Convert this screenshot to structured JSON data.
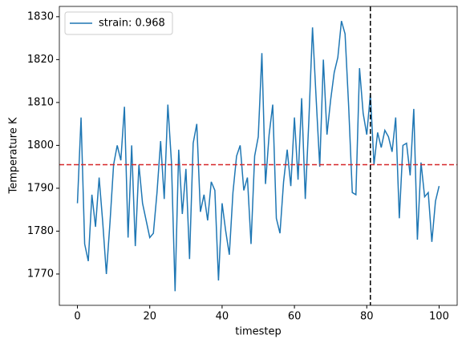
{
  "chart_data": {
    "type": "line",
    "x_label": "timestep",
    "y_label": "Temperature K",
    "x": [
      0,
      1,
      2,
      3,
      4,
      5,
      6,
      7,
      8,
      9,
      10,
      11,
      12,
      13,
      14,
      15,
      16,
      17,
      18,
      19,
      20,
      21,
      22,
      23,
      24,
      25,
      26,
      27,
      28,
      29,
      30,
      31,
      32,
      33,
      34,
      35,
      36,
      37,
      38,
      39,
      40,
      41,
      42,
      43,
      44,
      45,
      46,
      47,
      48,
      49,
      50,
      51,
      52,
      53,
      54,
      55,
      56,
      57,
      58,
      59,
      60,
      61,
      62,
      63,
      64,
      65,
      66,
      67,
      68,
      69,
      70,
      71,
      72,
      73,
      74,
      75,
      76,
      77,
      78,
      79,
      80,
      81,
      82,
      83,
      84,
      85,
      86,
      87,
      88,
      89,
      90,
      91,
      92,
      93,
      94,
      95,
      96,
      97,
      98,
      99,
      100
    ],
    "series": [
      {
        "name": "strain: 0.968",
        "color": "#1f77b4",
        "values": [
          1786.5,
          1806.5,
          1777,
          1773,
          1788.5,
          1781,
          1792.5,
          1782,
          1770,
          1782,
          1795.5,
          1800,
          1796.5,
          1809,
          1778.5,
          1800,
          1776.5,
          1795.5,
          1786.5,
          1782.5,
          1778.5,
          1779.5,
          1789,
          1801,
          1787.5,
          1809.5,
          1796,
          1766,
          1799,
          1784,
          1794.5,
          1773.5,
          1800.5,
          1805,
          1784.5,
          1788.5,
          1782.5,
          1791.5,
          1789.5,
          1768.5,
          1786.5,
          1780,
          1774.5,
          1789,
          1797.5,
          1800,
          1789.5,
          1792.5,
          1777,
          1797.5,
          1802,
          1821.5,
          1791,
          1802.5,
          1809.5,
          1783,
          1779.5,
          1791.5,
          1799,
          1790.5,
          1806.5,
          1792,
          1811,
          1787.5,
          1806,
          1827.5,
          1811,
          1795,
          1820,
          1802.5,
          1810.5,
          1817,
          1820.5,
          1829,
          1826,
          1809,
          1789,
          1788.5,
          1818,
          1807.5,
          1802.5,
          1812,
          1795.5,
          1803,
          1799.5,
          1803.5,
          1802,
          1798.5,
          1806.5,
          1783,
          1800,
          1800.5,
          1793,
          1808.5,
          1778,
          1796,
          1788,
          1789,
          1777.5,
          1787,
          1790.5
        ]
      }
    ],
    "hline": {
      "value": 1795.5,
      "color": "#d62728"
    },
    "vline": {
      "value": 81,
      "color": "#000000"
    },
    "xlim": [
      -5,
      105
    ],
    "xticks": [
      0,
      20,
      40,
      60,
      80,
      100
    ],
    "ylim": [
      1762.7,
      1832.4
    ],
    "yticks": [
      1770,
      1780,
      1790,
      1800,
      1810,
      1820,
      1830
    ],
    "legend": "upper left"
  }
}
